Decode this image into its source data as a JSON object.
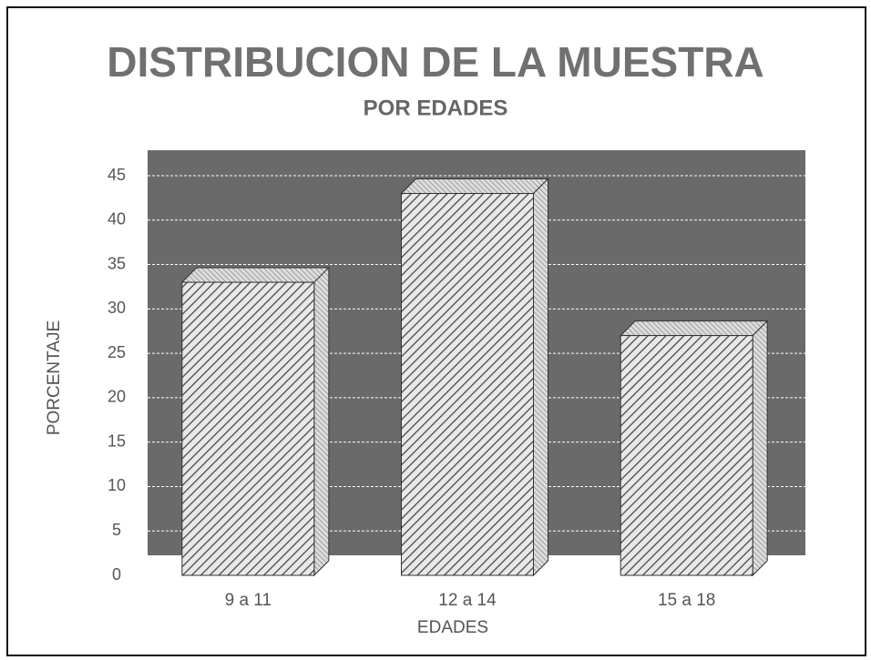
{
  "chart_data": {
    "type": "bar3d",
    "title": "DISTRIBUCION DE LA MUESTRA",
    "subtitle": "POR EDADES",
    "x_label": "EDADES",
    "y_label": "PORCENTAJE",
    "categories": [
      "9 a 11",
      "12 a 14",
      "15 a 18"
    ],
    "values": [
      33,
      43,
      27
    ],
    "color": "#d8d8d8",
    "background": "#6a6a6a",
    "ylim": [
      0,
      45
    ],
    "yticks": [
      0,
      5,
      10,
      15,
      20,
      25,
      30,
      35,
      40,
      45
    ],
    "grid": true
  }
}
